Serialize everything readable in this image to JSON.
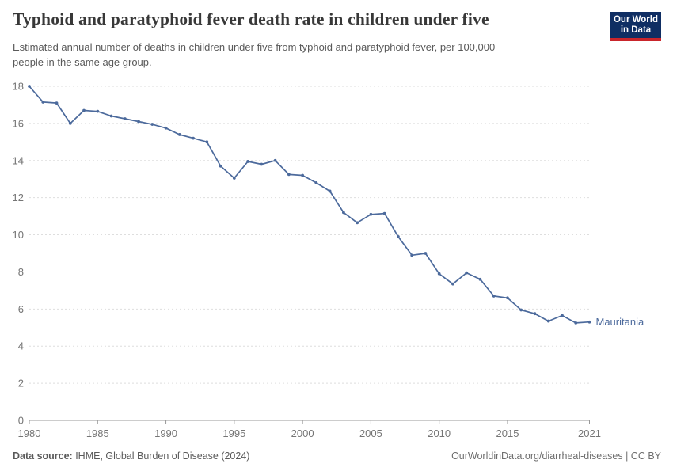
{
  "header": {
    "title": "Typhoid and paratyphoid fever death rate in children under five",
    "subtitle_lines": [
      "Estimated annual number of deaths in children under five from typhoid and paratyphoid fever, per 100,000",
      "people in the same age group."
    ],
    "logo": {
      "line1": "Our World",
      "line2": "in Data",
      "bg_color": "#0f2e63",
      "accent_color": "#c9252b"
    }
  },
  "chart_data": {
    "type": "line",
    "title": "Typhoid and paratyphoid fever death rate in children under five",
    "xlabel": "",
    "ylabel": "",
    "ylim": [
      0,
      18
    ],
    "yticks": [
      0,
      2,
      4,
      6,
      8,
      10,
      12,
      14,
      16,
      18
    ],
    "xticks": [
      1980,
      1985,
      1990,
      1995,
      2000,
      2005,
      2010,
      2015,
      2021
    ],
    "grid": "horizontal-dashed",
    "legend_position": "end-of-line-label",
    "line_color": "#4c6a9c",
    "grid_color": "#dedede",
    "axis_color": "#989898",
    "tick_label_color": "#757575",
    "years": [
      1980,
      1981,
      1982,
      1983,
      1984,
      1985,
      1986,
      1987,
      1988,
      1989,
      1990,
      1991,
      1992,
      1993,
      1994,
      1995,
      1996,
      1997,
      1998,
      1999,
      2000,
      2001,
      2002,
      2003,
      2004,
      2005,
      2006,
      2007,
      2008,
      2009,
      2010,
      2011,
      2012,
      2013,
      2014,
      2015,
      2016,
      2017,
      2018,
      2019,
      2020,
      2021
    ],
    "series": [
      {
        "name": "Mauritania",
        "color": "#4c6a9c",
        "values": [
          18,
          17.15,
          17.1,
          16,
          16.7,
          16.65,
          16.4,
          16.25,
          16.1,
          15.95,
          15.75,
          15.4,
          15.2,
          15,
          13.7,
          13.05,
          13.95,
          13.8,
          14,
          13.25,
          13.2,
          12.8,
          12.35,
          11.2,
          10.65,
          11.1,
          11.15,
          9.9,
          8.9,
          9,
          7.9,
          7.35,
          7.95,
          7.6,
          6.7,
          6.6,
          5.95,
          5.75,
          5.35,
          5.65,
          5.25,
          5.3
        ]
      }
    ]
  },
  "footer": {
    "source_label": "Data source:",
    "source_text": " IHME, Global Burden of Disease (2024)",
    "credit": "OurWorldinData.org/diarrheal-diseases | CC BY"
  }
}
